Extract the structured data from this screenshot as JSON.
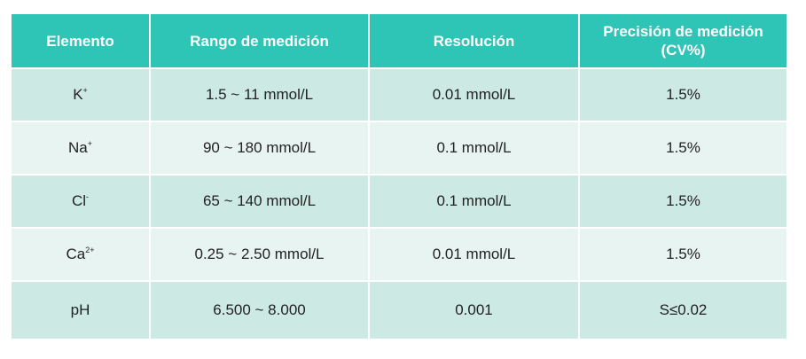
{
  "table": {
    "headers": [
      "Elemento",
      "Rango de medición",
      "Resolución",
      "Precisión de medición (CV%)"
    ],
    "rows": [
      {
        "element": "K",
        "charge": "+",
        "range": "1.5 ~ 11 mmol/L",
        "resolution": "0.01 mmol/L",
        "precision": "1.5%"
      },
      {
        "element": "Na",
        "charge": "+",
        "range": "90 ~ 180 mmol/L",
        "resolution": "0.1 mmol/L",
        "precision": "1.5%"
      },
      {
        "element": "Cl",
        "charge": "-",
        "range": "65 ~ 140 mmol/L",
        "resolution": "0.1 mmol/L",
        "precision": "1.5%"
      },
      {
        "element": "Ca",
        "charge": "2+",
        "range": "0.25 ~ 2.50 mmol/L",
        "resolution": "0.01 mmol/L",
        "precision": "1.5%"
      },
      {
        "element": "pH",
        "charge": "",
        "range": "6.500 ~ 8.000",
        "resolution": "0.001",
        "precision": "S≤0.02"
      }
    ]
  },
  "colors": {
    "header_bg": "#2ec4b6",
    "row_odd_bg": "#cde9e4",
    "row_even_bg": "#e8f4f2"
  }
}
